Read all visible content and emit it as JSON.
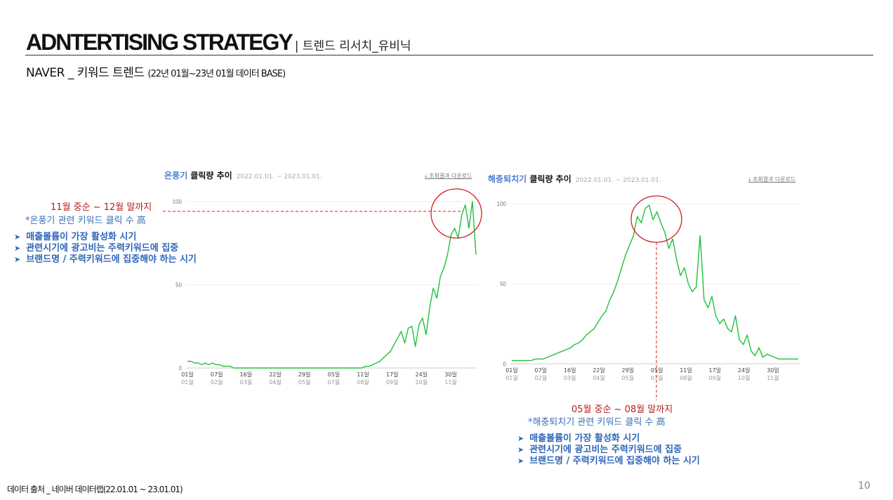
{
  "header": {
    "title": "ADNTERTISING STRATEGY",
    "title_sub": "| 트렌드 리서치_유비닉",
    "subtitle": "NAVER _ 키워드 트렌드 ",
    "subtitle_paren": "(22년 01월~23년 01월 데이터 BASE)"
  },
  "left_chart": {
    "keyword": "온풍기",
    "metric": " 클릭량 추이",
    "date_range": "2022.01.01. ~ 2023.01.01.",
    "download": "⤓ 조회결과 다운로드"
  },
  "right_chart": {
    "keyword": "해충퇴치기",
    "metric": " 클릭량 추이",
    "date_range": "2022.01.01. ~ 2023.01.01.",
    "download": "⤓ 조회결과 다운로드"
  },
  "left_notes": {
    "period": "11월 중순 ~ 12월 말까지",
    "desc": "*온풍기 관련 키워드 클릭 수 高",
    "bullets": [
      "매출볼륨이 가장 활성화 시기",
      "관련시기에 광고비는 주력키워드에 집중",
      "브랜드명 / 주력키워드에 집중해야 하는 시기"
    ]
  },
  "right_notes": {
    "period": "05월 중순 ~ 08월 말까지",
    "desc": "*해충퇴치기 관련 키워드 클릭 수 高",
    "bullets": [
      "매출볼륨이 가장 활성화 시기",
      "관련시기에 광고비는 주력키워드에 집중",
      "브랜드명 / 주력키워드에 집중해야 하는 시기"
    ]
  },
  "footer": "데이터 출처 _ 네이버 데이터랩(22.01.01 ~ 23.01.01)",
  "page_number": "10",
  "colors": {
    "line": "#22c03a",
    "keyword": "#4a7fd0",
    "highlight": "#d11f1f",
    "bullet": "#2e66b8"
  },
  "chart_data": [
    {
      "type": "line",
      "title": "온풍기 클릭량 추이",
      "ylim": [
        0,
        100
      ],
      "y_ticks": [
        "0",
        "50",
        "100"
      ],
      "x_tick_days": [
        "01일",
        "07일",
        "16일",
        "22일",
        "29일",
        "05일",
        "11일",
        "17일",
        "24일",
        "30일"
      ],
      "x_tick_months": [
        "01월",
        "02월",
        "03월",
        "04월",
        "05월",
        "07월",
        "08월",
        "09월",
        "10월",
        "11월"
      ],
      "series": [
        {
          "values": [
            4,
            4,
            3,
            3,
            2,
            3,
            2,
            3,
            2,
            2,
            1,
            1,
            1,
            0,
            0,
            0,
            0,
            0,
            0,
            0,
            0,
            0,
            0,
            0,
            0,
            0,
            0,
            0,
            0,
            0,
            0,
            0,
            0,
            0,
            0,
            0,
            0,
            0,
            0,
            0,
            0,
            0,
            0,
            0,
            0,
            0,
            0,
            0,
            0,
            0,
            1,
            1,
            2,
            3,
            4,
            6,
            8,
            10,
            14,
            18,
            22,
            15,
            24,
            25,
            13,
            26,
            30,
            20,
            36,
            48,
            42,
            55,
            60,
            68,
            80,
            84,
            78,
            92,
            98,
            84,
            100,
            68
          ]
        }
      ],
      "grid": true
    },
    {
      "type": "line",
      "title": "해충퇴치기 클릭량 추이",
      "ylim": [
        0,
        100
      ],
      "y_ticks": [
        "0",
        "50",
        "100"
      ],
      "x_tick_days": [
        "01일",
        "07일",
        "16일",
        "22일",
        "29일",
        "05일",
        "11일",
        "17일",
        "24일",
        "30일"
      ],
      "x_tick_months": [
        "01월",
        "02월",
        "03월",
        "04월",
        "05월",
        "07월",
        "08월",
        "09월",
        "10월",
        "11월"
      ],
      "series": [
        {
          "values": [
            2,
            2,
            2,
            2,
            2,
            2,
            3,
            3,
            3,
            4,
            5,
            6,
            7,
            8,
            9,
            10,
            12,
            13,
            15,
            18,
            20,
            22,
            26,
            30,
            33,
            40,
            45,
            52,
            60,
            68,
            74,
            80,
            92,
            88,
            97,
            99,
            90,
            95,
            88,
            82,
            72,
            78,
            65,
            55,
            60,
            50,
            45,
            48,
            80,
            40,
            35,
            42,
            30,
            25,
            28,
            22,
            20,
            30,
            15,
            12,
            18,
            8,
            5,
            10,
            4,
            6,
            5,
            4,
            3,
            3,
            3,
            3,
            3,
            3
          ]
        }
      ],
      "grid": true
    }
  ]
}
